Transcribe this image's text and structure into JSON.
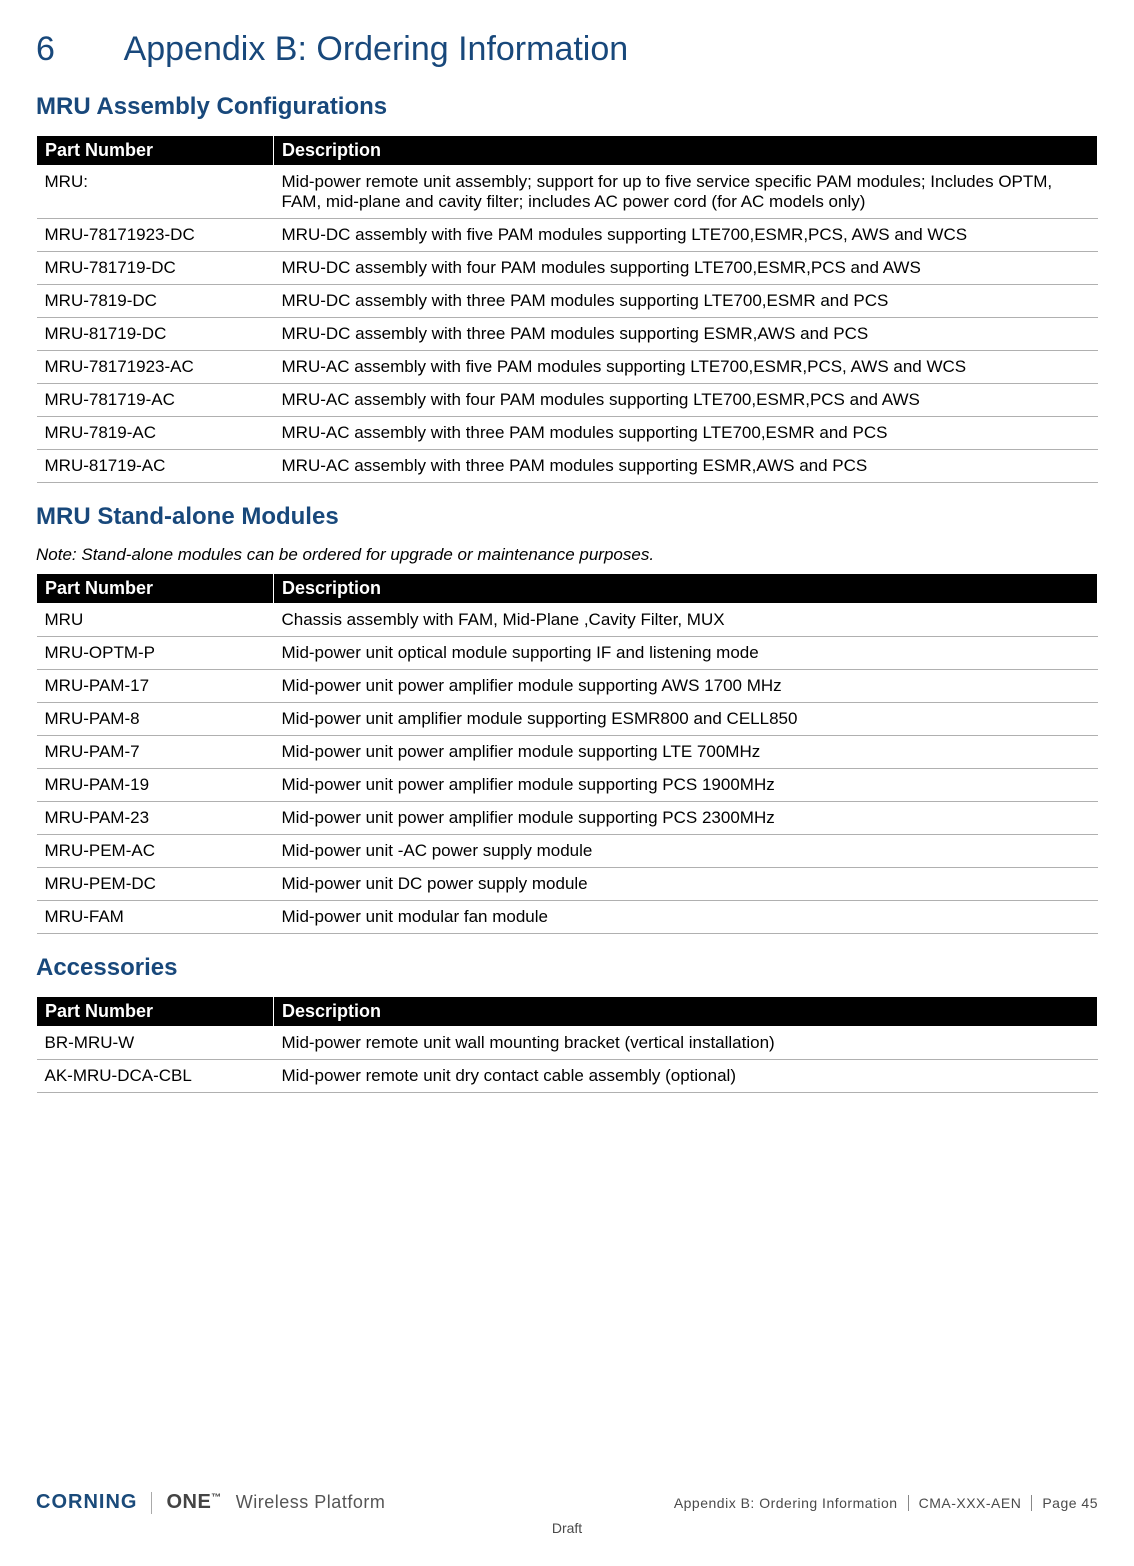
{
  "heading": {
    "num": "6",
    "title": "Appendix B: Ordering Information"
  },
  "section1": {
    "title": "MRU Assembly Configurations",
    "headers": {
      "pn": "Part Number",
      "desc": "Description"
    },
    "rows": [
      {
        "pn": "MRU:",
        "desc": "Mid-power remote unit assembly; support for up to five service specific PAM modules; Includes OPTM, FAM, mid-plane and cavity filter; includes AC power cord (for AC models only)"
      },
      {
        "pn": "MRU-78171923-DC",
        "desc": "MRU-DC assembly with five PAM modules supporting LTE700,ESMR,PCS, AWS and WCS"
      },
      {
        "pn": "MRU-781719-DC",
        "desc": "MRU-DC assembly with four PAM modules supporting LTE700,ESMR,PCS and AWS"
      },
      {
        "pn": "MRU-7819-DC",
        "desc": "MRU-DC assembly with three PAM modules supporting LTE700,ESMR and PCS"
      },
      {
        "pn": "MRU-81719-DC",
        "desc": "MRU-DC assembly with three PAM modules supporting ESMR,AWS and PCS"
      },
      {
        "pn": "MRU-78171923-AC",
        "desc": "MRU-AC assembly with five PAM modules supporting LTE700,ESMR,PCS, AWS and WCS"
      },
      {
        "pn": "MRU-781719-AC",
        "desc": "MRU-AC assembly with four PAM modules supporting LTE700,ESMR,PCS and AWS"
      },
      {
        "pn": "MRU-7819-AC",
        "desc": "MRU-AC assembly with three PAM modules supporting LTE700,ESMR and PCS"
      },
      {
        "pn": "MRU-81719-AC",
        "desc": "MRU-AC assembly with three PAM modules supporting ESMR,AWS and PCS"
      }
    ]
  },
  "section2": {
    "title": "MRU Stand-alone Modules",
    "note": "Note: Stand-alone modules can be ordered for upgrade or maintenance purposes.",
    "headers": {
      "pn": "Part Number",
      "desc": "Description"
    },
    "rows": [
      {
        "pn": "MRU",
        "desc": "Chassis assembly with FAM, Mid-Plane ,Cavity Filter, MUX"
      },
      {
        "pn": "MRU-OPTM-P",
        "desc": "Mid-power unit optical module supporting IF and listening mode"
      },
      {
        "pn": "MRU-PAM-17",
        "desc": "Mid-power unit power amplifier module supporting AWS 1700 MHz"
      },
      {
        "pn": "MRU-PAM-8",
        "desc": "Mid-power unit amplifier module supporting ESMR800 and CELL850"
      },
      {
        "pn": "MRU-PAM-7",
        "desc": "Mid-power unit power amplifier module supporting LTE 700MHz"
      },
      {
        "pn": "MRU-PAM-19",
        "desc": "Mid-power unit power amplifier module supporting PCS 1900MHz"
      },
      {
        "pn": "MRU-PAM-23",
        "desc": "Mid-power unit power amplifier module supporting PCS 2300MHz"
      },
      {
        "pn": "MRU-PEM-AC",
        "desc": "Mid-power unit -AC power supply module"
      },
      {
        "pn": "MRU-PEM-DC",
        "desc": "Mid-power unit DC power supply module"
      },
      {
        "pn": "MRU-FAM",
        "desc": "Mid-power unit modular fan module"
      }
    ]
  },
  "section3": {
    "title": "Accessories",
    "headers": {
      "pn": "Part Number",
      "desc": "Description"
    },
    "rows": [
      {
        "pn": "BR-MRU-W",
        "desc": "Mid-power remote unit wall mounting bracket (vertical installation)"
      },
      {
        "pn": "AK-MRU-DCA-CBL",
        "desc": "Mid-power remote unit dry contact cable assembly (optional)"
      }
    ]
  },
  "footer": {
    "brand1": "CORNING",
    "brand2_a": "ONE",
    "brand2_b": "™",
    "brand3": "Wireless Platform",
    "center": "Appendix B: Ordering Information",
    "doc": "CMA-XXX-AEN",
    "page": "Page 45",
    "draft": "Draft"
  },
  "style": {
    "heading_color": "#18487b",
    "table_header_bg": "#000000",
    "table_header_fg": "#ffffff",
    "row_border": "#b0b0b0"
  }
}
